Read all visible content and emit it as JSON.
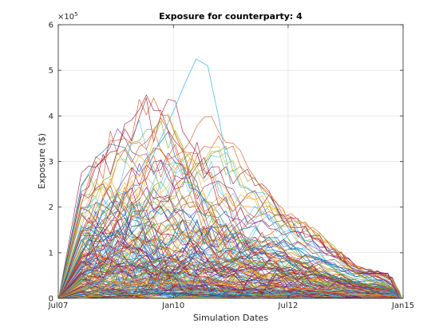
{
  "chart_data": {
    "type": "line",
    "title": "Exposure for counterparty: 4",
    "xlabel": "Simulation Dates",
    "ylabel": "Exposure ($)",
    "y_exponent_label": "×10",
    "y_exponent_power": "5",
    "x_tick_labels": [
      "Jul07",
      "Jan10",
      "Jul12",
      "Jan15"
    ],
    "y_tick_labels": [
      "0",
      "1",
      "2",
      "3",
      "4",
      "5",
      "6"
    ],
    "x_ticks": [
      "2007-07-01",
      "2010-01-01",
      "2012-07-01",
      "2015-01-01"
    ],
    "y_ticks": [
      0,
      100000,
      200000,
      300000,
      400000,
      500000,
      600000
    ],
    "xlim": [
      "2007-07-01",
      "2015-01-01"
    ],
    "ylim": [
      0,
      600000
    ],
    "grid": true,
    "series_count_note": "many simulated paths",
    "envelope": {
      "dates": [
        "2007-07-01",
        "2008-01-01",
        "2008-07-01",
        "2009-01-01",
        "2009-07-01",
        "2010-01-01",
        "2010-07-01",
        "2011-01-01",
        "2011-07-01",
        "2012-01-01",
        "2012-07-01",
        "2013-01-01",
        "2013-07-01",
        "2014-01-01",
        "2014-07-01",
        "2014-10-01",
        "2015-01-01"
      ],
      "max_exposure": [
        0,
        305000,
        350000,
        440000,
        450000,
        440000,
        525000,
        390000,
        330000,
        245000,
        190000,
        160000,
        120000,
        70000,
        60000,
        50000,
        0
      ],
      "typical_exposure": [
        0,
        130000,
        150000,
        160000,
        160000,
        150000,
        140000,
        120000,
        100000,
        85000,
        70000,
        55000,
        40000,
        25000,
        20000,
        15000,
        0
      ]
    },
    "highlight_path": {
      "dates": [
        "2010-01-01",
        "2010-04-01",
        "2010-07-01",
        "2010-10-01",
        "2011-01-01"
      ],
      "values": [
        410000,
        470000,
        525000,
        510000,
        390000
      ]
    },
    "end_date": "2014-12-01"
  },
  "colors": {
    "series": [
      "#0072BD",
      "#D95319",
      "#EDB120",
      "#7E2F8E",
      "#77AC30",
      "#4DBEEE",
      "#A2142F"
    ],
    "axis": "#262626",
    "grid": "#dfdfdf"
  }
}
